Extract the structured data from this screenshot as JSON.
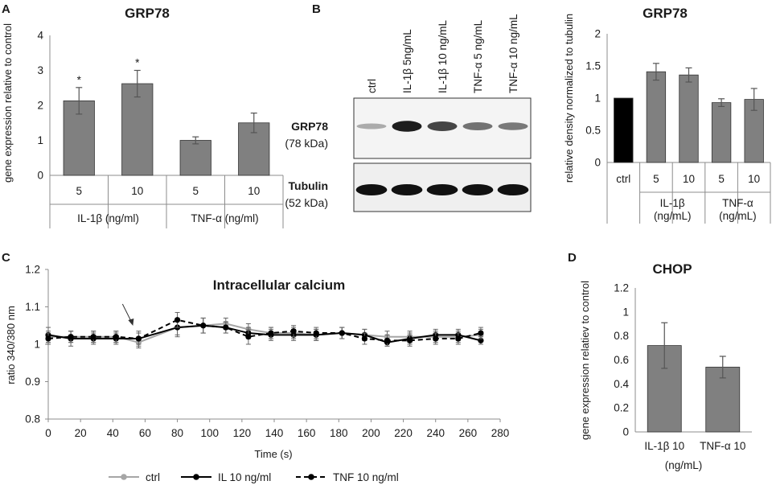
{
  "panels": {
    "A": "A",
    "B": "B",
    "C": "C",
    "D": "D"
  },
  "chart_data": [
    {
      "id": "A",
      "type": "bar",
      "title": "GRP78",
      "ylabel": "gene expression relative to control",
      "ylim": [
        0,
        4
      ],
      "yticks": [
        "0",
        "1",
        "2",
        "3",
        "4"
      ],
      "categories": [
        "5",
        "10",
        "5",
        "10"
      ],
      "groups": [
        {
          "label": "IL-1β (ng/ml)",
          "span": [
            0,
            1
          ]
        },
        {
          "label": "TNF-α (ng/ml)",
          "span": [
            2,
            3
          ]
        }
      ],
      "values": [
        2.13,
        2.62,
        1.0,
        1.5
      ],
      "errors": [
        0.38,
        0.38,
        0.1,
        0.28
      ],
      "annotations": [
        "*",
        "*",
        "",
        ""
      ],
      "bar_color": "#808080"
    },
    {
      "id": "B",
      "type": "bar",
      "title": "GRP78",
      "ylabel": "relative density normalized to tubulin",
      "ylim": [
        0,
        2
      ],
      "yticks": [
        "0",
        "0.5",
        "1",
        "1.5",
        "2"
      ],
      "categories": [
        "ctrl",
        "5",
        "10",
        "5",
        "10"
      ],
      "groups": [
        {
          "label": "IL-1β (ng/mL)",
          "span": [
            1,
            2
          ]
        },
        {
          "label": "TNF-α (ng/mL)",
          "span": [
            3,
            4
          ]
        }
      ],
      "values": [
        1.0,
        1.41,
        1.36,
        0.93,
        0.98
      ],
      "errors": [
        0,
        0.13,
        0.11,
        0.06,
        0.17
      ],
      "bar_colors": [
        "#000000",
        "#808080",
        "#808080",
        "#808080",
        "#808080"
      ]
    },
    {
      "id": "C",
      "type": "line",
      "title": "Intracellular calcium",
      "xlabel": "Time (s)",
      "ylabel": "ratio 340/380 nm",
      "xlim": [
        0,
        280
      ],
      "ylim": [
        0.8,
        1.2
      ],
      "xticks": [
        "0",
        "20",
        "40",
        "60",
        "80",
        "100",
        "120",
        "140",
        "160",
        "180",
        "200",
        "220",
        "240",
        "260",
        "280"
      ],
      "yticks": [
        "0.8",
        "0.9",
        "1",
        "1.1",
        "1.2"
      ],
      "x": [
        0,
        14,
        28,
        42,
        56,
        80,
        96,
        110,
        124,
        138,
        152,
        166,
        182,
        196,
        210,
        224,
        240,
        254,
        268
      ],
      "series": [
        {
          "name": "ctrl",
          "color": "#a6a6a6",
          "dash": "",
          "values": [
            1.02,
            1.02,
            1.02,
            1.02,
            1.005,
            1.045,
            1.05,
            1.055,
            1.04,
            1.03,
            1.03,
            1.025,
            1.03,
            1.025,
            1.02,
            1.02,
            1.02,
            1.02,
            1.025
          ],
          "errors": [
            0.015,
            0.015,
            0.015,
            0.015,
            0.015,
            0.02,
            0.02,
            0.015,
            0.015,
            0.015,
            0.015,
            0.015,
            0.015,
            0.015,
            0.015,
            0.015,
            0.015,
            0.015,
            0.015
          ]
        },
        {
          "name": "IL 10 ng/ml",
          "color": "#000000",
          "dash": "",
          "values": [
            1.025,
            1.015,
            1.015,
            1.015,
            1.015,
            1.045,
            1.05,
            1.045,
            1.03,
            1.025,
            1.025,
            1.025,
            1.03,
            1.025,
            1.005,
            1.015,
            1.025,
            1.025,
            1.01
          ],
          "errors": [
            0.02,
            0.02,
            0.015,
            0.015,
            0.02,
            0.025,
            0.02,
            0.015,
            0.015,
            0.015,
            0.015,
            0.015,
            0.015,
            0.015,
            0.01,
            0.015,
            0.015,
            0.015,
            0.01
          ]
        },
        {
          "name": "TNF 10 ng/ml",
          "color": "#000000",
          "dash": "6,4",
          "values": [
            1.015,
            1.02,
            1.02,
            1.02,
            1.015,
            1.065,
            1.05,
            1.045,
            1.02,
            1.03,
            1.035,
            1.03,
            1.03,
            1.015,
            1.01,
            1.01,
            1.015,
            1.015,
            1.03
          ],
          "errors": [
            0.015,
            0.015,
            0.015,
            0.015,
            0.015,
            0.02,
            0.02,
            0.015,
            0.02,
            0.015,
            0.015,
            0.015,
            0.015,
            0.015,
            0.015,
            0.015,
            0.015,
            0.015,
            0.015
          ]
        }
      ],
      "arrow_at_x": 50
    },
    {
      "id": "D",
      "type": "bar",
      "title": "CHOP",
      "ylabel": "gene expression relatiev to control",
      "ylim": [
        0,
        1.2
      ],
      "yticks": [
        "0",
        "0.2",
        "0.4",
        "0.6",
        "0.8",
        "1",
        "1.2"
      ],
      "categories": [
        "IL-1β 10",
        "TNF-α 10"
      ],
      "xlabel": "(ng/mL)",
      "values": [
        0.72,
        0.54
      ],
      "errors": [
        0.19,
        0.09
      ],
      "bar_color": "#808080"
    }
  ],
  "blot": {
    "lanes": [
      "ctrl",
      "IL-1β 5ng/mL",
      "IL-1β 10 ng/mL",
      "TNF-α 5 ng/mL",
      "TNF-α 10 ng/mL"
    ],
    "grp78_label": "GRP78",
    "grp78_kda": "(78 kDa)",
    "tubulin_label": "Tubulin",
    "tubulin_kda": "(52 kDa)",
    "grp78_intensity": [
      0.12,
      0.95,
      0.75,
      0.5,
      0.45
    ],
    "tubulin_intensity": [
      1,
      1,
      1,
      1,
      1
    ]
  }
}
